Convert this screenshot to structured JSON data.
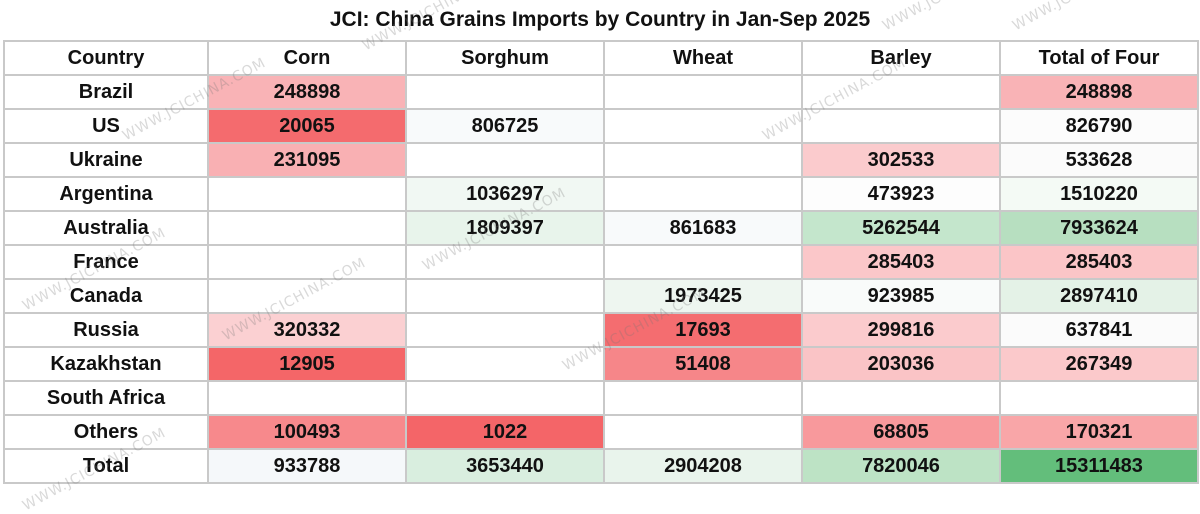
{
  "chart_data": {
    "type": "table",
    "title": "JCI: China Grains Imports by Country in Jan-Sep 2025",
    "columns": [
      "Country",
      "Corn",
      "Sorghum",
      "Wheat",
      "Barley",
      "Total of Four"
    ],
    "rows": [
      {
        "country": "Brazil",
        "values": [
          "248898",
          "",
          "",
          "",
          "248898"
        ]
      },
      {
        "country": "US",
        "values": [
          "20065",
          "806725",
          "",
          "",
          "826790"
        ]
      },
      {
        "country": "Ukraine",
        "values": [
          "231095",
          "",
          "",
          "302533",
          "533628"
        ]
      },
      {
        "country": "Argentina",
        "values": [
          "",
          "1036297",
          "",
          "473923",
          "1510220"
        ]
      },
      {
        "country": "Australia",
        "values": [
          "",
          "1809397",
          "861683",
          "5262544",
          "7933624"
        ]
      },
      {
        "country": "France",
        "values": [
          "",
          "",
          "",
          "285403",
          "285403"
        ]
      },
      {
        "country": "Canada",
        "values": [
          "",
          "",
          "1973425",
          "923985",
          "2897410"
        ]
      },
      {
        "country": "Russia",
        "values": [
          "320332",
          "",
          "17693",
          "299816",
          "637841"
        ]
      },
      {
        "country": "Kazakhstan",
        "values": [
          "12905",
          "",
          "51408",
          "203036",
          "267349"
        ]
      },
      {
        "country": "South Africa",
        "values": [
          "",
          "",
          "",
          "",
          ""
        ]
      },
      {
        "country": "Others",
        "values": [
          "100493",
          "1022",
          "",
          "68805",
          "170321"
        ]
      },
      {
        "country": "Total",
        "values": [
          "933788",
          "3653440",
          "2904208",
          "7820046",
          "15311483"
        ]
      }
    ],
    "cell_colors": [
      [
        "#f9b3b6",
        "#ffffff",
        "#ffffff",
        "#ffffff",
        "#f9b3b6"
      ],
      [
        "#f46b6e",
        "#f8fafb",
        "#ffffff",
        "#ffffff",
        "#fcfcfc"
      ],
      [
        "#f9b0b3",
        "#ffffff",
        "#ffffff",
        "#fbcbcd",
        "#fbfbfb"
      ],
      [
        "#ffffff",
        "#f1f8f3",
        "#ffffff",
        "#fdfdfd",
        "#f4faf5"
      ],
      [
        "#ffffff",
        "#e8f4eb",
        "#f8fafb",
        "#c4e6cc",
        "#b7dfc0"
      ],
      [
        "#ffffff",
        "#ffffff",
        "#ffffff",
        "#fbc7c9",
        "#fbc5c7"
      ],
      [
        "#ffffff",
        "#ffffff",
        "#eef6f0",
        "#f9fbfa",
        "#e4f2e7"
      ],
      [
        "#fbd0d2",
        "#ffffff",
        "#f46d70",
        "#fbcbcd",
        "#fbfbfb"
      ],
      [
        "#f46668",
        "#ffffff",
        "#f68689",
        "#fac4c6",
        "#fbc9cb"
      ],
      [
        "#ffffff",
        "#ffffff",
        "#ffffff",
        "#ffffff",
        "#ffffff"
      ],
      [
        "#f7898c",
        "#f46568",
        "#ffffff",
        "#f8999c",
        "#f9a6a8"
      ],
      [
        "#f5f8fa",
        "#d9eedf",
        "#e9f4ec",
        "#bde3c5",
        "#63be7b"
      ]
    ]
  },
  "watermark": "WWW.JCICHINA.COM"
}
